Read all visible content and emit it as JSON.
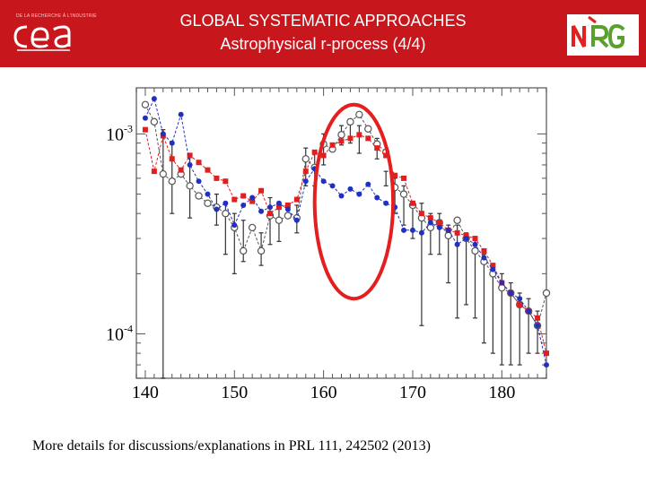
{
  "header": {
    "title_line1": "GLOBAL SYSTEMATIC APPROACHES",
    "title_line2": "Astrophysical r-process (4/4)",
    "logo_left": {
      "text": "cea",
      "tagline": "DE LA RECHERCHE À L'INDUSTRIE"
    },
    "logo_right": {
      "text": "NRG"
    },
    "background_color": "#c8161d"
  },
  "chart_data": {
    "type": "line",
    "title": "",
    "xlabel": "",
    "ylabel": "",
    "xlim": [
      139,
      185
    ],
    "ylim": [
      6e-05,
      0.0017
    ],
    "yscale": "log",
    "x_ticks": [
      140,
      150,
      160,
      170,
      180
    ],
    "y_ticks": [
      {
        "value": 0.001,
        "base": "10",
        "exp": "-3"
      },
      {
        "value": 0.0001,
        "base": "10",
        "exp": "-4"
      }
    ],
    "grid": false,
    "series": [
      {
        "marker": "open-circle",
        "color": "#555555",
        "x": [
          140,
          141,
          142,
          143,
          144,
          145,
          146,
          147,
          148,
          149,
          150,
          151,
          152,
          153,
          154,
          155,
          156,
          157,
          158,
          159,
          160,
          161,
          162,
          163,
          164,
          165,
          166,
          167,
          168,
          169,
          170,
          171,
          172,
          173,
          174,
          175,
          176,
          177,
          178,
          179,
          180,
          181,
          182,
          183,
          184,
          185
        ],
        "y": [
          0.0014,
          0.00115,
          0.00063,
          0.00058,
          0.00063,
          0.00055,
          0.00049,
          0.00045,
          0.00043,
          0.0004,
          0.00034,
          0.00026,
          0.00034,
          0.00026,
          0.00039,
          0.00037,
          0.00039,
          0.00038,
          0.00075,
          0.00068,
          0.00089,
          0.00084,
          0.00099,
          0.00115,
          0.00125,
          0.00106,
          0.00089,
          0.00081,
          0.00054,
          0.0005,
          0.00044,
          0.00038,
          0.00034,
          0.00036,
          0.00031,
          0.00037,
          0.0003,
          0.00026,
          0.00023,
          0.0002,
          0.00017,
          0.00016,
          0.00014,
          0.00013,
          0.00011,
          0.00016
        ]
      },
      {
        "marker": "square",
        "color": "#e02020",
        "x": [
          140,
          141,
          142,
          143,
          144,
          145,
          146,
          147,
          148,
          149,
          150,
          151,
          152,
          153,
          154,
          155,
          156,
          157,
          158,
          159,
          160,
          161,
          162,
          163,
          164,
          165,
          166,
          167,
          168,
          169,
          170,
          171,
          172,
          173,
          174,
          175,
          176,
          177,
          178,
          179,
          180,
          181,
          182,
          183,
          184,
          185
        ],
        "y": [
          0.00105,
          0.00065,
          0.00098,
          0.00075,
          0.00066,
          0.00078,
          0.00072,
          0.00066,
          0.0006,
          0.00058,
          0.00047,
          0.00049,
          0.00046,
          0.00052,
          0.0004,
          0.00043,
          0.00044,
          0.00047,
          0.00065,
          0.00081,
          0.00078,
          0.00088,
          0.00092,
          0.00095,
          0.00099,
          0.00095,
          0.00085,
          0.00078,
          0.00062,
          0.0006,
          0.00045,
          0.0004,
          0.00038,
          0.00036,
          0.00033,
          0.00032,
          0.00031,
          0.0003,
          0.00026,
          0.00022,
          0.00018,
          0.00016,
          0.00014,
          0.00013,
          0.00012,
          8e-05
        ]
      },
      {
        "marker": "filled-circle",
        "color": "#2030c0",
        "x": [
          140,
          141,
          142,
          143,
          144,
          145,
          146,
          147,
          148,
          149,
          150,
          151,
          152,
          153,
          154,
          155,
          156,
          157,
          158,
          159,
          160,
          161,
          162,
          163,
          164,
          165,
          166,
          167,
          168,
          169,
          170,
          171,
          172,
          173,
          174,
          175,
          176,
          177,
          178,
          179,
          180,
          181,
          182,
          183,
          184,
          185
        ],
        "y": [
          0.0012,
          0.0015,
          0.001,
          0.0009,
          0.00125,
          0.0007,
          0.00058,
          0.0005,
          0.00042,
          0.00045,
          0.00035,
          0.00044,
          0.00048,
          0.00041,
          0.00043,
          0.00045,
          0.00042,
          0.00037,
          0.00058,
          0.00067,
          0.00058,
          0.00055,
          0.00049,
          0.00053,
          0.0005,
          0.00056,
          0.00048,
          0.00045,
          0.00043,
          0.00033,
          0.00033,
          0.00032,
          0.00036,
          0.00034,
          0.00033,
          0.00028,
          0.0003,
          0.00028,
          0.00024,
          0.00021,
          0.00018,
          0.00016,
          0.00015,
          0.00013,
          0.00011,
          7e-05
        ]
      }
    ],
    "error_bars": [
      {
        "x": 142,
        "low": 6e-05,
        "high": 0.00105
      },
      {
        "x": 143,
        "low": 0.0004,
        "high": 0.0009
      },
      {
        "x": 145,
        "low": 0.00038,
        "high": 0.0008
      },
      {
        "x": 148,
        "low": 0.00035,
        "high": 0.0005
      },
      {
        "x": 149,
        "low": 0.00025,
        "high": 0.00045
      },
      {
        "x": 150,
        "low": 0.0002,
        "high": 0.0004
      },
      {
        "x": 151,
        "low": 0.00023,
        "high": 0.00037
      },
      {
        "x": 153,
        "low": 0.00022,
        "high": 0.00032
      },
      {
        "x": 154,
        "low": 0.00028,
        "high": 0.00048
      },
      {
        "x": 155,
        "low": 0.00029,
        "high": 0.00044
      },
      {
        "x": 157,
        "low": 0.00032,
        "high": 0.00044
      },
      {
        "x": 158,
        "low": 0.00055,
        "high": 0.00085
      },
      {
        "x": 159,
        "low": 0.00055,
        "high": 0.0008
      },
      {
        "x": 160,
        "low": 0.0007,
        "high": 0.001
      },
      {
        "x": 162,
        "low": 0.00088,
        "high": 0.0011
      },
      {
        "x": 163,
        "low": 0.0009,
        "high": 0.00115
      },
      {
        "x": 164,
        "low": 0.0008,
        "high": 0.0011
      },
      {
        "x": 166,
        "low": 0.00075,
        "high": 0.00095
      },
      {
        "x": 167,
        "low": 0.00055,
        "high": 0.00065
      },
      {
        "x": 168,
        "low": 0.0004,
        "high": 0.0006
      },
      {
        "x": 169,
        "low": 0.00035,
        "high": 0.00055
      },
      {
        "x": 170,
        "low": 0.0003,
        "high": 0.00045
      },
      {
        "x": 171,
        "low": 0.00011,
        "high": 0.00045
      },
      {
        "x": 172,
        "low": 0.00025,
        "high": 0.0004
      },
      {
        "x": 173,
        "low": 0.00025,
        "high": 0.0004
      },
      {
        "x": 174,
        "low": 0.00018,
        "high": 0.00035
      },
      {
        "x": 175,
        "low": 0.00012,
        "high": 0.00035
      },
      {
        "x": 176,
        "low": 0.00014,
        "high": 0.00032
      },
      {
        "x": 177,
        "low": 0.00012,
        "high": 0.0003
      },
      {
        "x": 178,
        "low": 9e-05,
        "high": 0.00025
      },
      {
        "x": 179,
        "low": 8e-05,
        "high": 0.00022
      },
      {
        "x": 180,
        "low": 7e-05,
        "high": 0.0002
      },
      {
        "x": 181,
        "low": 7e-05,
        "high": 0.00018
      },
      {
        "x": 182,
        "low": 7e-05,
        "high": 0.00016
      },
      {
        "x": 183,
        "low": 8e-05,
        "high": 0.00015
      },
      {
        "x": 184,
        "low": 8e-05,
        "high": 0.00013
      }
    ],
    "annotation": {
      "type": "ellipse",
      "color": "#e41f1f",
      "x_center": 163.3,
      "y_center": 0.00045,
      "x_span": [
        159,
        167.8
      ],
      "y_span": [
        0.00015,
        0.0014
      ]
    }
  },
  "footer": {
    "text": "More details for discussions/explanations in PRL 111, 242502 (2013)"
  }
}
